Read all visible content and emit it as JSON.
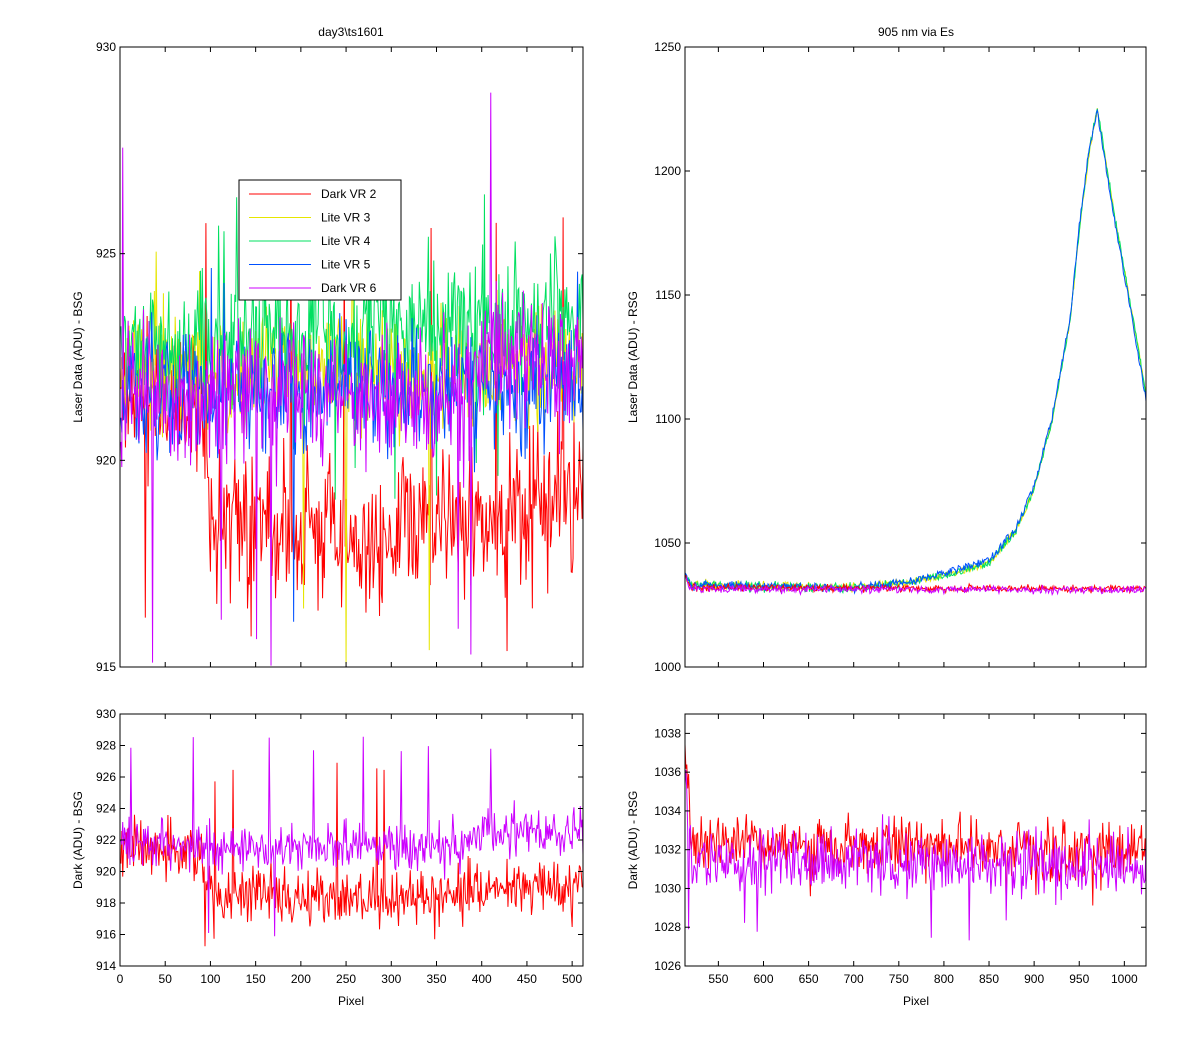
{
  "chart_data": [
    {
      "id": "top-left",
      "type": "line",
      "title": "day3\\ts1601",
      "xlabel": "",
      "ylabel": "Laser Data (ADU) - BSG",
      "xlim": [
        0,
        512
      ],
      "ylim": [
        915,
        930
      ],
      "yticks": [
        915,
        920,
        925,
        930
      ],
      "xticks": [
        0,
        50,
        100,
        150,
        200,
        250,
        300,
        350,
        400,
        450,
        500
      ],
      "show_xtick_labels": false,
      "grid": false,
      "legend": {
        "placement": "upper-left-inside",
        "entries": [
          "Dark VR 2",
          "Lite VR 3",
          "Lite VR 4",
          "Lite VR 5",
          "Dark VR 6"
        ]
      },
      "series": [
        {
          "name": "Dark VR 2",
          "color": "#ff0000",
          "x_range": [
            1,
            512
          ],
          "mean": [
            [
              1,
              921.6
            ],
            [
              90,
              921.3
            ],
            [
              100,
              918.4
            ],
            [
              300,
              918.2
            ],
            [
              380,
              918.6
            ],
            [
              512,
              919.2
            ]
          ],
          "noise": 1.1,
          "spike_lo": 915,
          "spike_hi": 927
        },
        {
          "name": "Lite VR 3",
          "color": "#e6e600",
          "x_range": [
            1,
            512
          ],
          "mean": [
            [
              1,
              922.2
            ],
            [
              512,
              922.2
            ]
          ],
          "noise": 0.9,
          "spike_lo": 915,
          "spike_hi": 926
        },
        {
          "name": "Lite VR 4",
          "color": "#00e060",
          "x_range": [
            1,
            512
          ],
          "mean": [
            [
              1,
              922.6
            ],
            [
              512,
              923.6
            ]
          ],
          "noise": 1.0,
          "spike_lo": 919,
          "spike_hi": 927
        },
        {
          "name": "Lite VR 5",
          "color": "#0050ff",
          "x_range": [
            1,
            512
          ],
          "mean": [
            [
              1,
              921.6
            ],
            [
              512,
              921.8
            ]
          ],
          "noise": 0.9,
          "spike_lo": 916,
          "spike_hi": 925
        },
        {
          "name": "Dark VR 6",
          "color": "#cc00ff",
          "x_range": [
            1,
            512
          ],
          "mean": [
            [
              1,
              921.7
            ],
            [
              380,
              921.5
            ],
            [
              400,
              922.6
            ],
            [
              512,
              922.3
            ]
          ],
          "noise": 1.0,
          "spike_lo": 915,
          "spike_hi": 929
        }
      ]
    },
    {
      "id": "top-right",
      "type": "line",
      "title": "905 nm via Es",
      "xlabel": "",
      "ylabel": "Laser Data (ADU) - RSG",
      "xlim": [
        513,
        1024
      ],
      "ylim": [
        1000,
        1250
      ],
      "yticks": [
        1000,
        1050,
        1100,
        1150,
        1200,
        1250
      ],
      "xticks": [
        550,
        600,
        650,
        700,
        750,
        800,
        850,
        900,
        950,
        1000
      ],
      "show_xtick_labels": false,
      "grid": false,
      "series": [
        {
          "name": "Lite VR 3",
          "color": "#e6e600",
          "x_range": [
            513,
            1024
          ],
          "mean": [
            [
              513,
              1037
            ],
            [
              520,
              1033
            ],
            [
              700,
              1032
            ],
            [
              760,
              1034
            ],
            [
              800,
              1037
            ],
            [
              850,
              1042
            ],
            [
              880,
              1055
            ],
            [
              900,
              1072
            ],
            [
              920,
              1100
            ],
            [
              940,
              1140
            ],
            [
              950,
              1175
            ],
            [
              960,
              1205
            ],
            [
              970,
              1225
            ],
            [
              990,
              1180
            ],
            [
              1005,
              1150
            ],
            [
              1024,
              1110
            ]
          ],
          "noise": 1.2
        },
        {
          "name": "Lite VR 4",
          "color": "#00e060",
          "x_range": [
            513,
            1024
          ],
          "mean": [
            [
              513,
              1037
            ],
            [
              520,
              1033
            ],
            [
              700,
              1032
            ],
            [
              760,
              1034
            ],
            [
              800,
              1037
            ],
            [
              850,
              1042
            ],
            [
              880,
              1055
            ],
            [
              900,
              1072
            ],
            [
              920,
              1100
            ],
            [
              940,
              1140
            ],
            [
              950,
              1176
            ],
            [
              960,
              1206
            ],
            [
              970,
              1226
            ],
            [
              990,
              1180
            ],
            [
              1005,
              1150
            ],
            [
              1024,
              1110
            ]
          ],
          "noise": 1.2
        },
        {
          "name": "Lite VR 5",
          "color": "#0050ff",
          "x_range": [
            513,
            1024
          ],
          "mean": [
            [
              513,
              1037
            ],
            [
              520,
              1033
            ],
            [
              700,
              1032
            ],
            [
              760,
              1034
            ],
            [
              800,
              1038
            ],
            [
              850,
              1043
            ],
            [
              880,
              1056
            ],
            [
              900,
              1073
            ],
            [
              920,
              1101
            ],
            [
              940,
              1141
            ],
            [
              950,
              1178
            ],
            [
              960,
              1207
            ],
            [
              970,
              1224
            ],
            [
              990,
              1178
            ],
            [
              1005,
              1148
            ],
            [
              1024,
              1108
            ]
          ],
          "noise": 1.2
        },
        {
          "name": "Dark VR 2",
          "color": "#ff0000",
          "x_range": [
            513,
            1024
          ],
          "mean": [
            [
              513,
              1037
            ],
            [
              520,
              1032
            ],
            [
              1024,
              1031.5
            ]
          ],
          "noise": 0.9
        },
        {
          "name": "Dark VR 6",
          "color": "#cc00ff",
          "x_range": [
            513,
            1024
          ],
          "mean": [
            [
              513,
              1036
            ],
            [
              520,
              1031.5
            ],
            [
              1024,
              1031
            ]
          ],
          "noise": 1.0
        }
      ]
    },
    {
      "id": "bottom-left",
      "type": "line",
      "title": "",
      "xlabel": "Pixel",
      "ylabel": "Dark (ADU) - BSG",
      "xlim": [
        0,
        512
      ],
      "ylim": [
        914,
        930
      ],
      "yticks": [
        914,
        916,
        918,
        920,
        922,
        924,
        926,
        928,
        930
      ],
      "xticks": [
        0,
        50,
        100,
        150,
        200,
        250,
        300,
        350,
        400,
        450,
        500
      ],
      "show_xtick_labels": true,
      "grid": false,
      "series": [
        {
          "name": "Dark VR 2",
          "color": "#ff0000",
          "x_range": [
            1,
            512
          ],
          "mean": [
            [
              1,
              921.6
            ],
            [
              90,
              921.3
            ],
            [
              100,
              918.4
            ],
            [
              300,
              918.2
            ],
            [
              380,
              918.6
            ],
            [
              512,
              919.2
            ]
          ],
          "noise": 1.1,
          "spike_lo": 915,
          "spike_hi": 927
        },
        {
          "name": "Dark VR 6",
          "color": "#cc00ff",
          "x_range": [
            1,
            512
          ],
          "mean": [
            [
              1,
              921.7
            ],
            [
              380,
              921.5
            ],
            [
              400,
              922.6
            ],
            [
              512,
              922.3
            ]
          ],
          "noise": 1.0,
          "spike_lo": 915,
          "spike_hi": 929
        }
      ]
    },
    {
      "id": "bottom-right",
      "type": "line",
      "title": "",
      "xlabel": "Pixel",
      "ylabel": "Dark (ADU) - RSG",
      "xlim": [
        513,
        1024
      ],
      "ylim": [
        1026,
        1039
      ],
      "yticks": [
        1026,
        1028,
        1030,
        1032,
        1034,
        1036,
        1038
      ],
      "xticks": [
        550,
        600,
        650,
        700,
        750,
        800,
        850,
        900,
        950,
        1000
      ],
      "show_xtick_labels": true,
      "grid": false,
      "series": [
        {
          "name": "Dark VR 2",
          "color": "#ff0000",
          "x_range": [
            513,
            1024
          ],
          "mean": [
            [
              513,
              1037.5
            ],
            [
              520,
              1032.5
            ],
            [
              1024,
              1031.8
            ]
          ],
          "noise": 0.9,
          "spike_lo": 1029,
          "spike_hi": 1035
        },
        {
          "name": "Dark VR 6",
          "color": "#cc00ff",
          "x_range": [
            513,
            1024
          ],
          "mean": [
            [
              513,
              1036.5
            ],
            [
              520,
              1031.5
            ],
            [
              1024,
              1031.0
            ]
          ],
          "noise": 1.0,
          "spike_lo": 1027,
          "spike_hi": 1034
        }
      ]
    }
  ]
}
